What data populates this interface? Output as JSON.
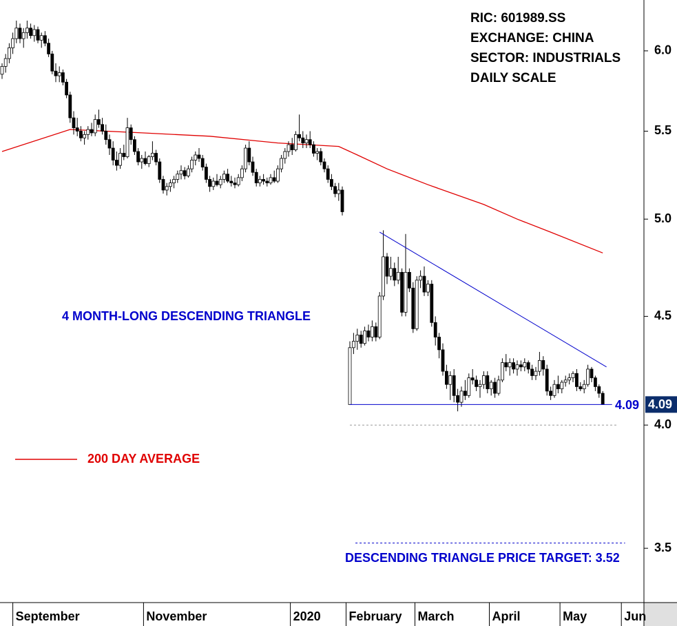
{
  "chart_data": {
    "type": "candlestick",
    "info": [
      "RIC: 601989.SS",
      "EXCHANGE: CHINA",
      "SECTOR: INDUSTRIALS",
      "DAILY SCALE"
    ],
    "annotation": "4 MONTH-LONG DESCENDING TRIANGLE",
    "target_label": "DESCENDING TRIANGLE PRICE TARGET: 3.52",
    "log_scale": true,
    "ylim": [
      3.3,
      6.34
    ],
    "yticks": [
      3.5,
      {
        "value": 4,
        "label": "4.0"
      },
      4.5,
      {
        "value": 5,
        "label": "5.0"
      },
      5.5,
      {
        "value": 6,
        "label": "6.0"
      }
    ],
    "up_color": "#ffffff",
    "down_color": "#000000",
    "x_labels": [
      {
        "value": 3,
        "label": "September"
      },
      {
        "value": 39.5,
        "label": "November"
      },
      {
        "value": 80.5,
        "label": "2020"
      },
      {
        "value": 95.5,
        "label": "February"
      },
      {
        "value": 113.5,
        "label": "March"
      },
      {
        "value": 133.5,
        "label": "April"
      },
      {
        "value": 152.5,
        "label": "May"
      },
      {
        "value": 169,
        "label": "Jun"
      }
    ],
    "ohlc": [
      [
        5.85,
        5.92,
        5.82,
        5.9
      ],
      [
        5.9,
        5.98,
        5.86,
        5.95
      ],
      [
        5.95,
        6.05,
        5.92,
        6.02
      ],
      [
        6.02,
        6.12,
        5.98,
        6.08
      ],
      [
        6.08,
        6.2,
        6.05,
        6.15
      ],
      [
        6.15,
        6.18,
        6.05,
        6.08
      ],
      [
        6.08,
        6.15,
        6.02,
        6.12
      ],
      [
        6.12,
        6.2,
        6.08,
        6.15
      ],
      [
        6.15,
        6.18,
        6.08,
        6.1
      ],
      [
        6.1,
        6.17,
        6.06,
        6.14
      ],
      [
        6.14,
        6.16,
        6.05,
        6.07
      ],
      [
        6.07,
        6.12,
        6.02,
        6.1
      ],
      [
        6.1,
        6.13,
        6.03,
        6.05
      ],
      [
        6.05,
        6.08,
        5.96,
        5.98
      ],
      [
        5.98,
        6.0,
        5.85,
        5.87
      ],
      [
        5.87,
        5.92,
        5.8,
        5.84
      ],
      [
        5.84,
        5.9,
        5.8,
        5.86
      ],
      [
        5.86,
        5.88,
        5.78,
        5.8
      ],
      [
        5.8,
        5.82,
        5.7,
        5.72
      ],
      [
        5.72,
        5.74,
        5.55,
        5.58
      ],
      [
        5.58,
        5.62,
        5.48,
        5.52
      ],
      [
        5.52,
        5.58,
        5.47,
        5.5
      ],
      [
        5.5,
        5.53,
        5.44,
        5.46
      ],
      [
        5.46,
        5.5,
        5.42,
        5.48
      ],
      [
        5.48,
        5.53,
        5.45,
        5.51
      ],
      [
        5.51,
        5.55,
        5.47,
        5.49
      ],
      [
        5.49,
        5.6,
        5.47,
        5.57
      ],
      [
        5.57,
        5.63,
        5.52,
        5.54
      ],
      [
        5.54,
        5.58,
        5.48,
        5.5
      ],
      [
        5.5,
        5.54,
        5.42,
        5.45
      ],
      [
        5.45,
        5.48,
        5.36,
        5.4
      ],
      [
        5.4,
        5.44,
        5.3,
        5.33
      ],
      [
        5.33,
        5.38,
        5.27,
        5.3
      ],
      [
        5.3,
        5.4,
        5.28,
        5.37
      ],
      [
        5.37,
        5.42,
        5.33,
        5.35
      ],
      [
        5.35,
        5.58,
        5.34,
        5.52
      ],
      [
        5.52,
        5.54,
        5.42,
        5.45
      ],
      [
        5.45,
        5.47,
        5.36,
        5.38
      ],
      [
        5.38,
        5.4,
        5.3,
        5.32
      ],
      [
        5.32,
        5.36,
        5.28,
        5.34
      ],
      [
        5.34,
        5.38,
        5.3,
        5.31
      ],
      [
        5.31,
        5.36,
        5.29,
        5.35
      ],
      [
        5.35,
        5.44,
        5.33,
        5.37
      ],
      [
        5.37,
        5.39,
        5.3,
        5.32
      ],
      [
        5.32,
        5.34,
        5.2,
        5.22
      ],
      [
        5.22,
        5.24,
        5.14,
        5.16
      ],
      [
        5.16,
        5.2,
        5.13,
        5.18
      ],
      [
        5.18,
        5.22,
        5.15,
        5.2
      ],
      [
        5.2,
        5.24,
        5.17,
        5.22
      ],
      [
        5.22,
        5.27,
        5.2,
        5.25
      ],
      [
        5.25,
        5.3,
        5.22,
        5.27
      ],
      [
        5.27,
        5.29,
        5.22,
        5.24
      ],
      [
        5.24,
        5.3,
        5.23,
        5.28
      ],
      [
        5.28,
        5.35,
        5.26,
        5.33
      ],
      [
        5.33,
        5.38,
        5.3,
        5.36
      ],
      [
        5.36,
        5.4,
        5.32,
        5.34
      ],
      [
        5.34,
        5.36,
        5.27,
        5.29
      ],
      [
        5.29,
        5.31,
        5.2,
        5.22
      ],
      [
        5.22,
        5.24,
        5.15,
        5.18
      ],
      [
        5.18,
        5.23,
        5.16,
        5.21
      ],
      [
        5.21,
        5.25,
        5.18,
        5.19
      ],
      [
        5.19,
        5.24,
        5.17,
        5.22
      ],
      [
        5.22,
        5.27,
        5.2,
        5.25
      ],
      [
        5.25,
        5.28,
        5.2,
        5.21
      ],
      [
        5.21,
        5.24,
        5.18,
        5.2
      ],
      [
        5.2,
        5.23,
        5.17,
        5.19
      ],
      [
        5.19,
        5.25,
        5.18,
        5.23
      ],
      [
        5.23,
        5.3,
        5.21,
        5.28
      ],
      [
        5.28,
        5.42,
        5.26,
        5.4
      ],
      [
        5.4,
        5.44,
        5.3,
        5.32
      ],
      [
        5.32,
        5.35,
        5.24,
        5.26
      ],
      [
        5.26,
        5.28,
        5.18,
        5.2
      ],
      [
        5.2,
        5.24,
        5.18,
        5.22
      ],
      [
        5.22,
        5.25,
        5.19,
        5.21
      ],
      [
        5.21,
        5.23,
        5.18,
        5.2
      ],
      [
        5.2,
        5.25,
        5.19,
        5.23
      ],
      [
        5.23,
        5.27,
        5.2,
        5.21
      ],
      [
        5.21,
        5.3,
        5.2,
        5.28
      ],
      [
        5.28,
        5.36,
        5.26,
        5.34
      ],
      [
        5.34,
        5.4,
        5.31,
        5.38
      ],
      [
        5.38,
        5.44,
        5.35,
        5.42
      ],
      [
        5.42,
        5.46,
        5.36,
        5.39
      ],
      [
        5.39,
        5.5,
        5.38,
        5.48
      ],
      [
        5.48,
        5.6,
        5.44,
        5.46
      ],
      [
        5.46,
        5.5,
        5.4,
        5.43
      ],
      [
        5.43,
        5.48,
        5.4,
        5.45
      ],
      [
        5.45,
        5.5,
        5.4,
        5.42
      ],
      [
        5.42,
        5.44,
        5.35,
        5.37
      ],
      [
        5.37,
        5.4,
        5.33,
        5.38
      ],
      [
        5.38,
        5.4,
        5.3,
        5.32
      ],
      [
        5.32,
        5.34,
        5.26,
        5.28
      ],
      [
        5.28,
        5.3,
        5.2,
        5.22
      ],
      [
        5.22,
        5.25,
        5.16,
        5.18
      ],
      [
        5.18,
        5.2,
        5.12,
        5.14
      ],
      [
        5.14,
        5.2,
        5.1,
        5.16
      ],
      [
        5.16,
        5.18,
        5.02,
        5.04
      ],
      [
        4.09,
        4.38,
        4.09,
        4.35
      ],
      [
        4.35,
        4.42,
        4.32,
        4.38
      ],
      [
        4.38,
        4.44,
        4.34,
        4.41
      ],
      [
        4.41,
        4.43,
        4.35,
        4.37
      ],
      [
        4.37,
        4.45,
        4.36,
        4.43
      ],
      [
        4.43,
        4.46,
        4.38,
        4.4
      ],
      [
        4.4,
        4.48,
        4.38,
        4.45
      ],
      [
        4.45,
        4.47,
        4.38,
        4.4
      ],
      [
        4.4,
        4.62,
        4.39,
        4.6
      ],
      [
        4.6,
        4.94,
        4.58,
        4.8
      ],
      [
        4.8,
        4.82,
        4.66,
        4.7
      ],
      [
        4.7,
        4.8,
        4.68,
        4.74
      ],
      [
        4.74,
        4.77,
        4.65,
        4.68
      ],
      [
        4.68,
        4.8,
        4.66,
        4.72
      ],
      [
        4.72,
        4.74,
        4.5,
        4.52
      ],
      [
        4.52,
        4.92,
        4.5,
        4.72
      ],
      [
        4.72,
        4.74,
        4.62,
        4.64
      ],
      [
        4.64,
        4.67,
        4.42,
        4.44
      ],
      [
        4.44,
        4.7,
        4.43,
        4.68
      ],
      [
        4.68,
        4.73,
        4.64,
        4.7
      ],
      [
        4.7,
        4.75,
        4.6,
        4.62
      ],
      [
        4.62,
        4.68,
        4.6,
        4.66
      ],
      [
        4.66,
        4.68,
        4.45,
        4.47
      ],
      [
        4.47,
        4.5,
        4.36,
        4.4
      ],
      [
        4.4,
        4.42,
        4.3,
        4.34
      ],
      [
        4.34,
        4.37,
        4.22,
        4.24
      ],
      [
        4.24,
        4.27,
        4.16,
        4.18
      ],
      [
        4.18,
        4.24,
        4.11,
        4.22
      ],
      [
        4.22,
        4.25,
        4.1,
        4.13
      ],
      [
        4.13,
        4.16,
        4.06,
        4.1
      ],
      [
        4.1,
        4.17,
        4.08,
        4.15
      ],
      [
        4.15,
        4.2,
        4.11,
        4.13
      ],
      [
        4.13,
        4.23,
        4.12,
        4.21
      ],
      [
        4.21,
        4.25,
        4.18,
        4.2
      ],
      [
        4.2,
        4.22,
        4.15,
        4.17
      ],
      [
        4.17,
        4.2,
        4.12,
        4.18
      ],
      [
        4.18,
        4.24,
        4.16,
        4.22
      ],
      [
        4.22,
        4.24,
        4.14,
        4.16
      ],
      [
        4.16,
        4.2,
        4.13,
        4.19
      ],
      [
        4.19,
        4.21,
        4.12,
        4.14
      ],
      [
        4.14,
        4.22,
        4.13,
        4.2
      ],
      [
        4.2,
        4.3,
        4.19,
        4.28
      ],
      [
        4.28,
        4.32,
        4.24,
        4.26
      ],
      [
        4.26,
        4.3,
        4.22,
        4.28
      ],
      [
        4.28,
        4.3,
        4.23,
        4.25
      ],
      [
        4.25,
        4.29,
        4.22,
        4.27
      ],
      [
        4.27,
        4.29,
        4.24,
        4.26
      ],
      [
        4.26,
        4.3,
        4.24,
        4.28
      ],
      [
        4.28,
        4.29,
        4.23,
        4.25
      ],
      [
        4.25,
        4.27,
        4.2,
        4.22
      ],
      [
        4.22,
        4.26,
        4.2,
        4.24
      ],
      [
        4.24,
        4.33,
        4.22,
        4.29
      ],
      [
        4.29,
        4.31,
        4.22,
        4.25
      ],
      [
        4.25,
        4.27,
        4.13,
        4.15
      ],
      [
        4.15,
        4.17,
        4.11,
        4.13
      ],
      [
        4.13,
        4.2,
        4.12,
        4.18
      ],
      [
        4.18,
        4.22,
        4.14,
        4.16
      ],
      [
        4.16,
        4.2,
        4.14,
        4.19
      ],
      [
        4.19,
        4.22,
        4.17,
        4.2
      ],
      [
        4.2,
        4.23,
        4.18,
        4.21
      ],
      [
        4.21,
        4.24,
        4.19,
        4.23
      ],
      [
        4.23,
        4.25,
        4.15,
        4.17
      ],
      [
        4.17,
        4.19,
        4.15,
        4.16
      ],
      [
        4.16,
        4.2,
        4.14,
        4.18
      ],
      [
        4.18,
        4.27,
        4.17,
        4.25
      ],
      [
        4.25,
        4.26,
        4.19,
        4.21
      ],
      [
        4.21,
        4.22,
        4.15,
        4.17
      ],
      [
        4.17,
        4.18,
        4.12,
        4.14
      ],
      [
        4.14,
        4.15,
        4.09,
        4.09
      ]
    ],
    "series": [
      {
        "name": "200 DAY AVERAGE",
        "color": "#e00000",
        "x": [
          0,
          19,
          39,
          58,
          77,
          94,
          98,
          106,
          117,
          132,
          141,
          150,
          164
        ],
        "values": [
          5.38,
          5.51,
          5.49,
          5.47,
          5.43,
          5.41,
          5.36,
          5.28,
          5.19,
          5.08,
          5.0,
          4.93,
          4.82
        ]
      }
    ],
    "trend_lines": [
      {
        "color": "#0000cc",
        "x": [
          104,
          165
        ],
        "values": [
          4.93,
          4.26
        ]
      },
      {
        "color": "#0000cc",
        "x": [
          96,
          166.5
        ],
        "values": [
          4.09,
          4.09
        ]
      }
    ],
    "support_level": 4.09,
    "last_price": 4.09,
    "reference_lines": [
      {
        "color": "#999999",
        "x": [
          96,
          168
        ],
        "values": [
          4.0,
          4.0
        ]
      },
      {
        "color": "#0000cc",
        "x": [
          97.5,
          170
        ],
        "values": [
          3.52,
          3.52
        ]
      }
    ]
  }
}
